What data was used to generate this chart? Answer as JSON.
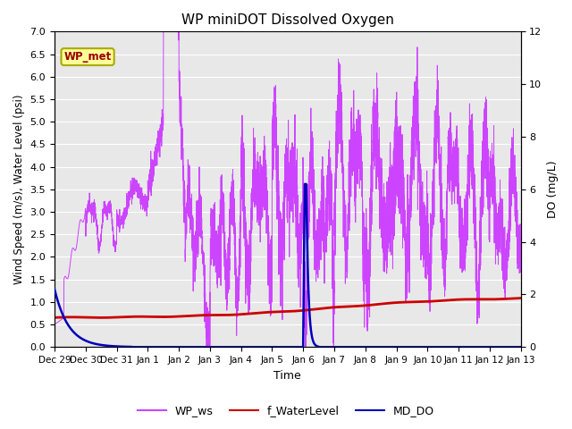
{
  "title": "WP miniDOT Dissolved Oxygen",
  "xlabel": "Time",
  "ylabel_left": "Wind Speed (m/s), Water Level (psi)",
  "ylabel_right": "DO (mg/L)",
  "ylim_left": [
    0.0,
    7.0
  ],
  "ylim_right": [
    0,
    12
  ],
  "yticks_left": [
    0.0,
    0.5,
    1.0,
    1.5,
    2.0,
    2.5,
    3.0,
    3.5,
    4.0,
    4.5,
    5.0,
    5.5,
    6.0,
    6.5,
    7.0
  ],
  "yticks_right": [
    0,
    2,
    4,
    6,
    8,
    10,
    12
  ],
  "xtick_labels": [
    "Dec 29",
    "Dec 30",
    "Dec 31",
    "Jan 1",
    "Jan 2",
    "Jan 3",
    "Jan 4",
    "Jan 5",
    "Jan 6",
    "Jan 7",
    "Jan 8",
    "Jan 9",
    "Jan 10",
    "Jan 11",
    "Jan 12",
    "Jan 13"
  ],
  "legend_labels": [
    "WP_ws",
    "f_WaterLevel",
    "MD_DO"
  ],
  "legend_colors": [
    "#cc44ff",
    "#cc0000",
    "#0000bb"
  ],
  "wp_met_label": "WP_met",
  "wp_met_color": "#990000",
  "wp_met_bg": "#ffff99",
  "plot_bg_color": "#e8e8e8",
  "grid_color": "#ffffff",
  "color_ws": "#cc44ff",
  "color_wl": "#cc0000",
  "color_do": "#0000bb"
}
